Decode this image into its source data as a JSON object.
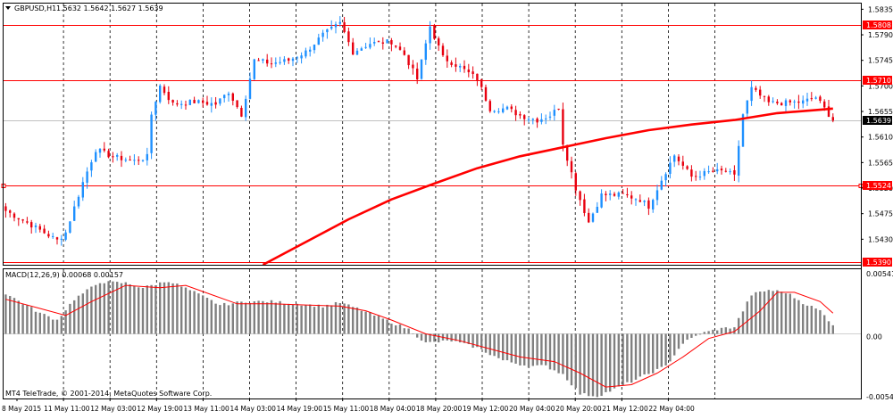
{
  "header": {
    "symbol": "GBPUSD,H1",
    "ohlc": "1.5632 1.5642 1.5627 1.5639",
    "menu_icon": "triangle-down-icon"
  },
  "macd_panel": {
    "title": "MACD(12,26,9) 0.00068 0.00157",
    "axis_labels": [
      "0.00541",
      "0.00",
      "-0.0054"
    ]
  },
  "copyright": "MT4 TeleTrade, © 2001-2014, MetaQuotes Software Corp.",
  "colors": {
    "up_candle": "#1e90ff",
    "down_candle": "#e8000f",
    "level_line": "#ff0000",
    "moving_average": "#ff0000",
    "macd_histogram": "#808080",
    "macd_signal": "#ff0000",
    "price_badge": "#000000"
  },
  "chart_data": {
    "type": "candlestick",
    "price_axis_labels": [
      "1.5835",
      "1.5790",
      "1.5745",
      "1.5700",
      "1.5655",
      "1.5610",
      "1.5565",
      "1.5520",
      "1.5475",
      "1.5430"
    ],
    "time_axis_labels": [
      "8 May 2015",
      "11 May 11:00",
      "12 May 03:00",
      "12 May 19:00",
      "13 May 11:00",
      "14 May 03:00",
      "14 May 19:00",
      "15 May 11:00",
      "18 May 04:00",
      "18 May 20:00",
      "19 May 12:00",
      "20 May 04:00",
      "20 May 20:00",
      "21 May 12:00",
      "22 May 04:00"
    ],
    "ylim": [
      1.5385,
      1.5845
    ],
    "horizontal_levels": [
      {
        "label": "1.5808",
        "value": 1.5808
      },
      {
        "label": "1.5710",
        "value": 1.571
      },
      {
        "label": "1.5524",
        "value": 1.5524
      },
      {
        "label": "1.5390",
        "value": 1.539
      }
    ],
    "current_price": {
      "label": "1.5639",
      "value": 1.5639
    },
    "price_path": [
      [
        0,
        1.548
      ],
      [
        6,
        1.5455
      ],
      [
        12,
        1.5428
      ],
      [
        14,
        1.5442
      ],
      [
        18,
        1.553
      ],
      [
        21,
        1.5588
      ],
      [
        25,
        1.5575
      ],
      [
        30,
        1.5568
      ],
      [
        33,
        1.5575
      ],
      [
        34,
        1.565
      ],
      [
        36,
        1.57
      ],
      [
        39,
        1.5668
      ],
      [
        44,
        1.5672
      ],
      [
        49,
        1.5668
      ],
      [
        52,
        1.569
      ],
      [
        55,
        1.565
      ],
      [
        58,
        1.5745
      ],
      [
        62,
        1.574
      ],
      [
        66,
        1.5745
      ],
      [
        70,
        1.576
      ],
      [
        74,
        1.579
      ],
      [
        78,
        1.581
      ],
      [
        81,
        1.576
      ],
      [
        85,
        1.5775
      ],
      [
        90,
        1.5778
      ],
      [
        93,
        1.5755
      ],
      [
        96,
        1.5712
      ],
      [
        99,
        1.5805
      ],
      [
        102,
        1.575
      ],
      [
        106,
        1.5733
      ],
      [
        110,
        1.5712
      ],
      [
        113,
        1.566
      ],
      [
        117,
        1.566
      ],
      [
        120,
        1.5648
      ],
      [
        124,
        1.564
      ],
      [
        127,
        1.5648
      ],
      [
        129,
        1.5662
      ],
      [
        130,
        1.56
      ],
      [
        133,
        1.552
      ],
      [
        136,
        1.546
      ],
      [
        139,
        1.5508
      ],
      [
        144,
        1.5508
      ],
      [
        148,
        1.55
      ],
      [
        150,
        1.5488
      ],
      [
        153,
        1.5535
      ],
      [
        156,
        1.5578
      ],
      [
        160,
        1.554
      ],
      [
        164,
        1.5548
      ],
      [
        168,
        1.555
      ],
      [
        170,
        1.554
      ],
      [
        172,
        1.565
      ],
      [
        174,
        1.5695
      ],
      [
        178,
        1.567
      ],
      [
        182,
        1.567
      ],
      [
        186,
        1.5672
      ],
      [
        189,
        1.568
      ],
      [
        192,
        1.565
      ],
      [
        193,
        1.5639
      ]
    ],
    "moving_average": [
      [
        60,
        1.5385
      ],
      [
        70,
        1.5425
      ],
      [
        80,
        1.5465
      ],
      [
        90,
        1.55
      ],
      [
        100,
        1.5528
      ],
      [
        110,
        1.5555
      ],
      [
        120,
        1.5576
      ],
      [
        130,
        1.5592
      ],
      [
        140,
        1.5608
      ],
      [
        150,
        1.5622
      ],
      [
        160,
        1.5632
      ],
      [
        170,
        1.564
      ],
      [
        180,
        1.5652
      ],
      [
        190,
        1.5658
      ],
      [
        193,
        1.566
      ]
    ],
    "macd_ylim": [
      -0.0056,
      0.0056
    ],
    "macd_histogram_path": [
      [
        0,
        0.0035
      ],
      [
        8,
        0.0018
      ],
      [
        12,
        0.0012
      ],
      [
        16,
        0.003
      ],
      [
        22,
        0.0045
      ],
      [
        28,
        0.0044
      ],
      [
        32,
        0.004
      ],
      [
        38,
        0.0046
      ],
      [
        44,
        0.0036
      ],
      [
        50,
        0.0025
      ],
      [
        56,
        0.0028
      ],
      [
        62,
        0.0028
      ],
      [
        68,
        0.0026
      ],
      [
        74,
        0.0024
      ],
      [
        78,
        0.0027
      ],
      [
        82,
        0.0022
      ],
      [
        86,
        0.0016
      ],
      [
        90,
        0.001
      ],
      [
        94,
        0.0004
      ],
      [
        98,
        -0.0008
      ],
      [
        104,
        -0.0006
      ],
      [
        110,
        -0.0012
      ],
      [
        116,
        -0.0023
      ],
      [
        122,
        -0.0028
      ],
      [
        126,
        -0.0028
      ],
      [
        130,
        -0.0035
      ],
      [
        134,
        -0.0052
      ],
      [
        138,
        -0.0054
      ],
      [
        142,
        -0.0048
      ],
      [
        148,
        -0.0038
      ],
      [
        154,
        -0.0028
      ],
      [
        158,
        -0.0008
      ],
      [
        162,
        0.0
      ],
      [
        166,
        0.0004
      ],
      [
        170,
        0.0006
      ],
      [
        174,
        0.0034
      ],
      [
        178,
        0.0038
      ],
      [
        182,
        0.0036
      ],
      [
        186,
        0.0027
      ],
      [
        190,
        0.002
      ],
      [
        193,
        0.0008
      ]
    ],
    "macd_signal_path": [
      [
        0,
        0.003
      ],
      [
        8,
        0.0022
      ],
      [
        14,
        0.0016
      ],
      [
        20,
        0.0028
      ],
      [
        28,
        0.0042
      ],
      [
        36,
        0.004
      ],
      [
        42,
        0.0042
      ],
      [
        48,
        0.0034
      ],
      [
        54,
        0.0026
      ],
      [
        62,
        0.0026
      ],
      [
        70,
        0.0025
      ],
      [
        78,
        0.0024
      ],
      [
        84,
        0.002
      ],
      [
        90,
        0.0012
      ],
      [
        98,
        0.0
      ],
      [
        106,
        -0.0006
      ],
      [
        114,
        -0.0014
      ],
      [
        120,
        -0.002
      ],
      [
        128,
        -0.0024
      ],
      [
        134,
        -0.0034
      ],
      [
        140,
        -0.0046
      ],
      [
        146,
        -0.0044
      ],
      [
        152,
        -0.0034
      ],
      [
        158,
        -0.002
      ],
      [
        164,
        -0.0004
      ],
      [
        170,
        0.0002
      ],
      [
        176,
        0.002
      ],
      [
        180,
        0.0036
      ],
      [
        184,
        0.0036
      ],
      [
        190,
        0.0028
      ],
      [
        193,
        0.0018
      ]
    ]
  }
}
